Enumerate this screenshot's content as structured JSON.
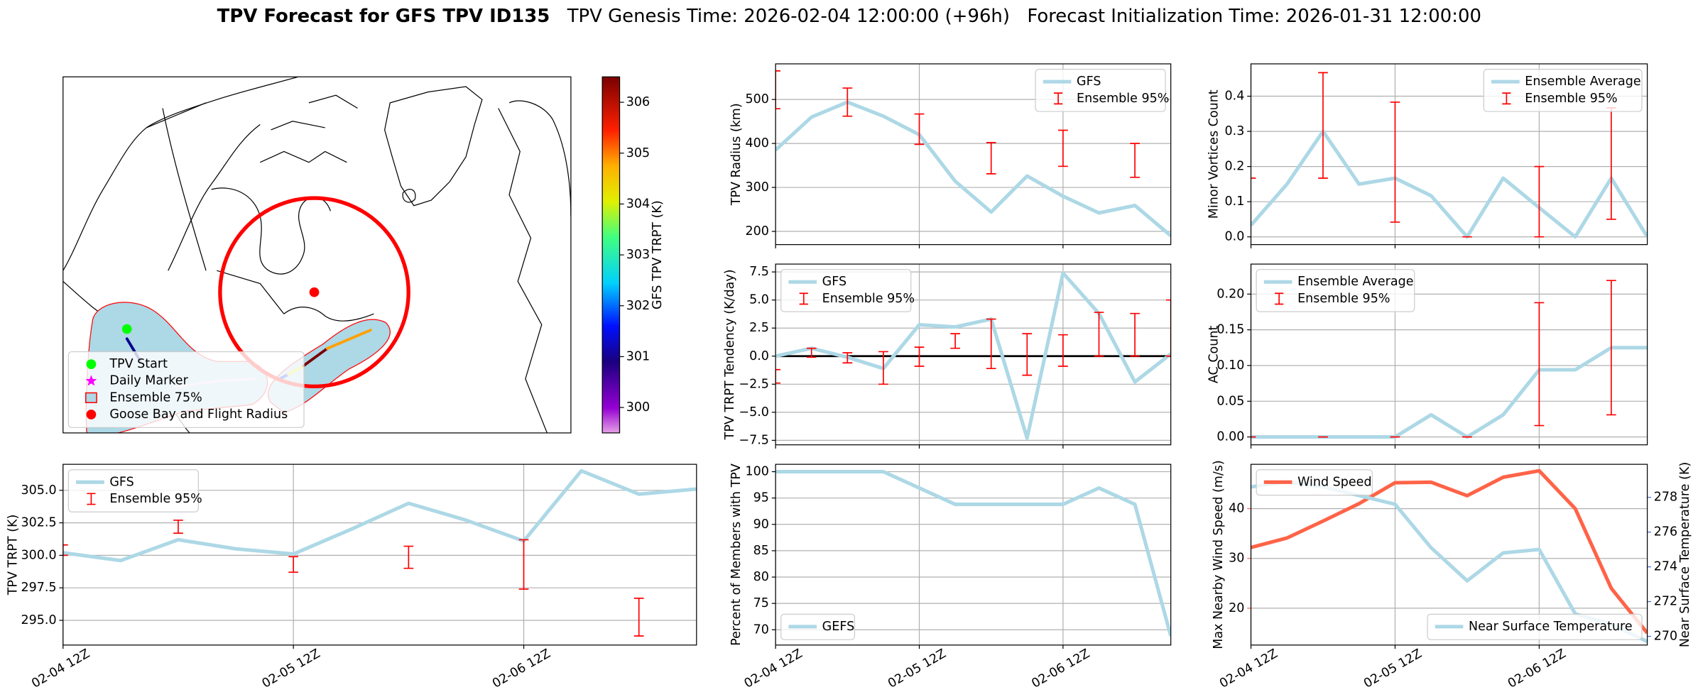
{
  "title": "TPV Forecast for GFS TPV ID135",
  "subtitle": [
    "TPV Genesis Time: 2026-02-04 12:00:00 (+96h)",
    "Forecast Initialization Time: 2026-01-31 12:00:00"
  ],
  "chart_data": [
    {
      "type": "map",
      "legend_loc": "lower left",
      "legend": [
        {
          "label": "TPV Start",
          "marker": "circle",
          "color": "#00ff00"
        },
        {
          "label": "Daily Marker",
          "marker": "star",
          "color": "#ff00ff"
        },
        {
          "label": "Ensemble 75%",
          "marker": "patch",
          "color": "#add8e6",
          "edgecolor": "red"
        },
        {
          "label": "Goose Bay and Flight Radius",
          "marker": "circle",
          "color": "red"
        }
      ],
      "colorbar": {
        "label": "GFS TPV TRPT (K)",
        "clim": [
          299.5,
          306.5
        ],
        "ticks": [
          300,
          301,
          302,
          303,
          304,
          305,
          306
        ]
      }
    },
    {
      "type": "line",
      "ylabel": "TPV TRPT (K)",
      "categories": [
        "02-04 12Z",
        null,
        null,
        null,
        "02-05 12Z",
        null,
        null,
        null,
        "02-06 12Z",
        null,
        null,
        null
      ],
      "ylim": [
        293.1,
        307
      ],
      "yticks": [
        {
          "value": 295,
          "label": "295.0"
        },
        297.5,
        {
          "value": 300,
          "label": "300.0"
        },
        302.5,
        {
          "value": 305,
          "label": "305.0"
        }
      ],
      "grid": true,
      "legend": "upper left",
      "series": [
        {
          "name": "GFS",
          "color": "#add8e6",
          "values": [
            300.2,
            299.6,
            301.2,
            300.5,
            300.1,
            302.0,
            304.0,
            302.7,
            301.1,
            306.5,
            304.7,
            305.1
          ]
        },
        {
          "name": "Ensemble 95%",
          "type": "errorbar",
          "color": "red",
          "low": [
            300.0,
            null,
            301.7,
            null,
            298.7,
            null,
            299.0,
            null,
            297.4,
            null,
            293.8,
            null
          ],
          "high": [
            300.8,
            null,
            302.7,
            null,
            299.9,
            null,
            300.7,
            null,
            301.2,
            null,
            296.7,
            null
          ]
        }
      ]
    },
    {
      "type": "line",
      "ylabel": "TPV Radius (km)",
      "ylim": [
        170,
        581
      ],
      "yticks": [
        200,
        300,
        400,
        500
      ],
      "grid": true,
      "legend": "upper right",
      "series": [
        {
          "name": "GFS",
          "color": "#add8e6",
          "values": [
            385,
            460,
            494,
            462,
            420,
            314,
            244,
            326,
            280,
            242,
            259,
            190
          ]
        },
        {
          "name": "Ensemble 95%",
          "type": "errorbar",
          "color": "red",
          "low": [
            479,
            null,
            462,
            null,
            398,
            null,
            331,
            null,
            348,
            null,
            323,
            null
          ],
          "high": [
            565,
            null,
            526,
            null,
            467,
            null,
            402,
            null,
            430,
            null,
            400,
            null
          ]
        }
      ]
    },
    {
      "type": "line",
      "ylabel": "TPV TRPT Tendency (K/day)",
      "ylim": [
        -7.9,
        8.2
      ],
      "yticks": [
        {
          "value": -7.5,
          "label": "−7.5"
        },
        {
          "value": -5,
          "label": "−5.0"
        },
        {
          "value": -2.5,
          "label": "−2.5"
        },
        {
          "value": 0,
          "label": "0.0"
        },
        2.5,
        {
          "value": 5,
          "label": "5.0"
        },
        7.5
      ],
      "grid": true,
      "legend": "upper left",
      "hline": 0,
      "series": [
        {
          "name": "GFS",
          "color": "#add8e6",
          "values": [
            0.0,
            0.7,
            -0.1,
            -1.1,
            2.8,
            2.6,
            3.3,
            -7.3,
            7.4,
            3.8,
            -2.3,
            0.2
          ]
        },
        {
          "name": "Ensemble 95%",
          "type": "errorbar",
          "color": "red",
          "low": [
            -2.4,
            -0.1,
            -0.6,
            -2.5,
            -0.9,
            0.7,
            -1.1,
            -1.7,
            -0.9,
            0.0,
            0.0,
            0.0
          ],
          "high": [
            -1.2,
            0.7,
            0.3,
            0.4,
            0.8,
            2.0,
            3.3,
            2.0,
            1.9,
            3.9,
            3.8,
            5.0
          ]
        }
      ]
    },
    {
      "type": "line",
      "ylabel": "Percent of Members with TPV",
      "categories": [
        "02-04 12Z",
        null,
        null,
        null,
        "02-05 12Z",
        null,
        null,
        null,
        "02-06 12Z",
        null,
        null,
        null
      ],
      "ylim": [
        67.1,
        101.4
      ],
      "yticks": [
        70,
        75,
        80,
        85,
        90,
        95,
        100
      ],
      "grid": true,
      "legend": "lower left",
      "series": [
        {
          "name": "GEFS",
          "color": "#add8e6",
          "values": [
            100,
            100,
            100,
            100,
            96.9,
            93.8,
            93.8,
            93.8,
            93.8,
            96.9,
            93.8,
            68.8
          ]
        }
      ]
    },
    {
      "type": "line",
      "ylabel": "Minor Vortices Count",
      "ylim": [
        -0.022,
        0.492
      ],
      "yticks": [
        {
          "value": 0,
          "label": "0.0"
        },
        0.1,
        0.2,
        0.3,
        0.4
      ],
      "grid": true,
      "legend": "upper right",
      "series": [
        {
          "name": "Ensemble Average",
          "color": "#add8e6",
          "values": [
            0.033,
            0.15,
            0.3,
            0.15,
            0.167,
            0.117,
            0.0,
            0.167,
            0.083,
            0.0,
            0.167,
            0.0
          ]
        },
        {
          "name": "Ensemble 95%",
          "type": "errorbar",
          "color": "red",
          "low": [
            0.167,
            null,
            0.167,
            null,
            0.042,
            null,
            0.0,
            null,
            0.0,
            null,
            0.05,
            null
          ],
          "high": [
            0.167,
            null,
            0.467,
            null,
            0.383,
            null,
            0.0,
            null,
            0.2,
            null,
            0.367,
            null
          ]
        }
      ]
    },
    {
      "type": "line",
      "ylabel": "AC Count",
      "ylim": [
        -0.011,
        0.242
      ],
      "yticks": [
        {
          "value": 0,
          "label": "0.00"
        },
        0.05,
        {
          "value": 0.1,
          "label": "0.10"
        },
        0.15,
        {
          "value": 0.2,
          "label": "0.20"
        }
      ],
      "grid": true,
      "legend": "upper left",
      "series": [
        {
          "name": "Ensemble Average",
          "color": "#add8e6",
          "values": [
            0,
            0,
            0,
            0,
            0,
            0.031,
            0,
            0.031,
            0.094,
            0.094,
            0.125,
            0.125
          ]
        },
        {
          "name": "Ensemble 95%",
          "type": "errorbar",
          "color": "red",
          "low": [
            0,
            null,
            0,
            null,
            0,
            null,
            0,
            null,
            0.016,
            null,
            0.031,
            null
          ],
          "high": [
            0,
            null,
            0,
            null,
            0,
            null,
            0,
            null,
            0.188,
            null,
            0.219,
            null
          ]
        }
      ]
    },
    {
      "type": "line",
      "ylabel": "Max Nearby Wind Speed (m/s)",
      "ylabel_color": "#ff6347",
      "y2label": "Near Surface Temperature (K)",
      "y2label_color": "#4169e1",
      "categories": [
        "02-04 12Z",
        null,
        null,
        null,
        "02-05 12Z",
        null,
        null,
        null,
        "02-06 12Z",
        null,
        null,
        null
      ],
      "ylim": [
        12.6,
        48.9
      ],
      "yticks": [
        20,
        30,
        40
      ],
      "y2lim": [
        269.5,
        279.9
      ],
      "y2ticks": [
        270,
        272,
        274,
        276,
        278
      ],
      "grid": true,
      "series": [
        {
          "name": "Wind Speed",
          "color": "#ff6347",
          "legend": "upper left",
          "values": [
            32.2,
            34.1,
            37.5,
            41.0,
            45.2,
            45.3,
            42.6,
            46.3,
            47.6,
            40.0,
            24.0,
            15.0
          ]
        },
        {
          "name": "Near Surface Temperature",
          "color": "#add8e6",
          "axis": "y2",
          "legend": "lower right",
          "values": [
            278.6,
            278.9,
            278.6,
            278.1,
            277.6,
            275.1,
            273.2,
            274.8,
            275.0,
            271.3,
            270.7,
            269.7
          ]
        }
      ]
    }
  ]
}
